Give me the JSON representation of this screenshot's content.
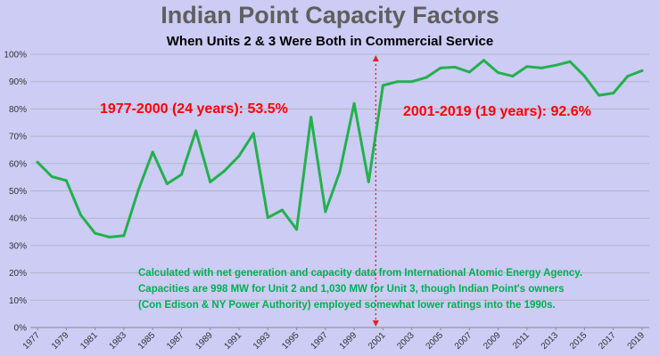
{
  "chart_data": {
    "type": "line",
    "title": "Indian Point Capacity Factors",
    "subtitle": "When Units 2 & 3 Were Both in Commercial Service",
    "xlabel": "",
    "ylabel": "",
    "ylim": [
      0,
      100
    ],
    "y_ticks": [
      "0%",
      "10%",
      "20%",
      "30%",
      "40%",
      "50%",
      "60%",
      "70%",
      "80%",
      "90%",
      "100%"
    ],
    "x_tick_labels": [
      "1977",
      "1979",
      "1981",
      "1983",
      "1985",
      "1987",
      "1989",
      "1991",
      "1993",
      "1995",
      "1997",
      "1999",
      "2001",
      "2003",
      "2005",
      "2007",
      "2009",
      "2011",
      "2013",
      "2015",
      "2017",
      "2019"
    ],
    "x": [
      1977,
      1978,
      1979,
      1980,
      1981,
      1982,
      1983,
      1984,
      1985,
      1986,
      1987,
      1988,
      1989,
      1990,
      1991,
      1992,
      1993,
      1994,
      1995,
      1996,
      1997,
      1998,
      1999,
      2000,
      2001,
      2002,
      2003,
      2004,
      2005,
      2006,
      2007,
      2008,
      2009,
      2010,
      2011,
      2012,
      2013,
      2014,
      2015,
      2016,
      2017,
      2018,
      2019
    ],
    "series": [
      {
        "values": [
          60.5,
          55.2,
          53.8,
          41.2,
          34.5,
          33.1,
          33.6,
          50.2,
          64.2,
          52.6,
          56.0,
          72.0,
          53.3,
          57.4,
          62.8,
          71.0,
          40.2,
          43.0,
          35.9,
          77.0,
          42.4,
          57.0,
          82.0,
          53.3,
          88.6,
          90.0,
          90.0,
          91.5,
          95.0,
          95.3,
          93.5,
          97.8,
          93.3,
          92.0,
          95.5,
          95.0,
          96.0,
          97.3,
          92.0,
          85.0,
          85.8,
          92.0,
          94.0
        ],
        "color": "#22b14c"
      }
    ],
    "divider": {
      "x": 2000.5,
      "color": "#e02020"
    },
    "annotations": [
      {
        "text": "1977-2000 (24 years): 53.5%",
        "color": "#ff0000"
      },
      {
        "text": "2001-2019 (19 years): 92.6%",
        "color": "#ff0000"
      }
    ],
    "note": [
      "Calculated with net generation and capacity data from International Atomic Energy Agency.",
      "Capacities are 998 MW for Unit 2 and 1,030 MW for Unit 3, though Indian Point's owners",
      "(Con Edison & NY Power Authority) employed somewhat lower ratings into the 1990s."
    ],
    "grid": true,
    "legend": "none"
  }
}
